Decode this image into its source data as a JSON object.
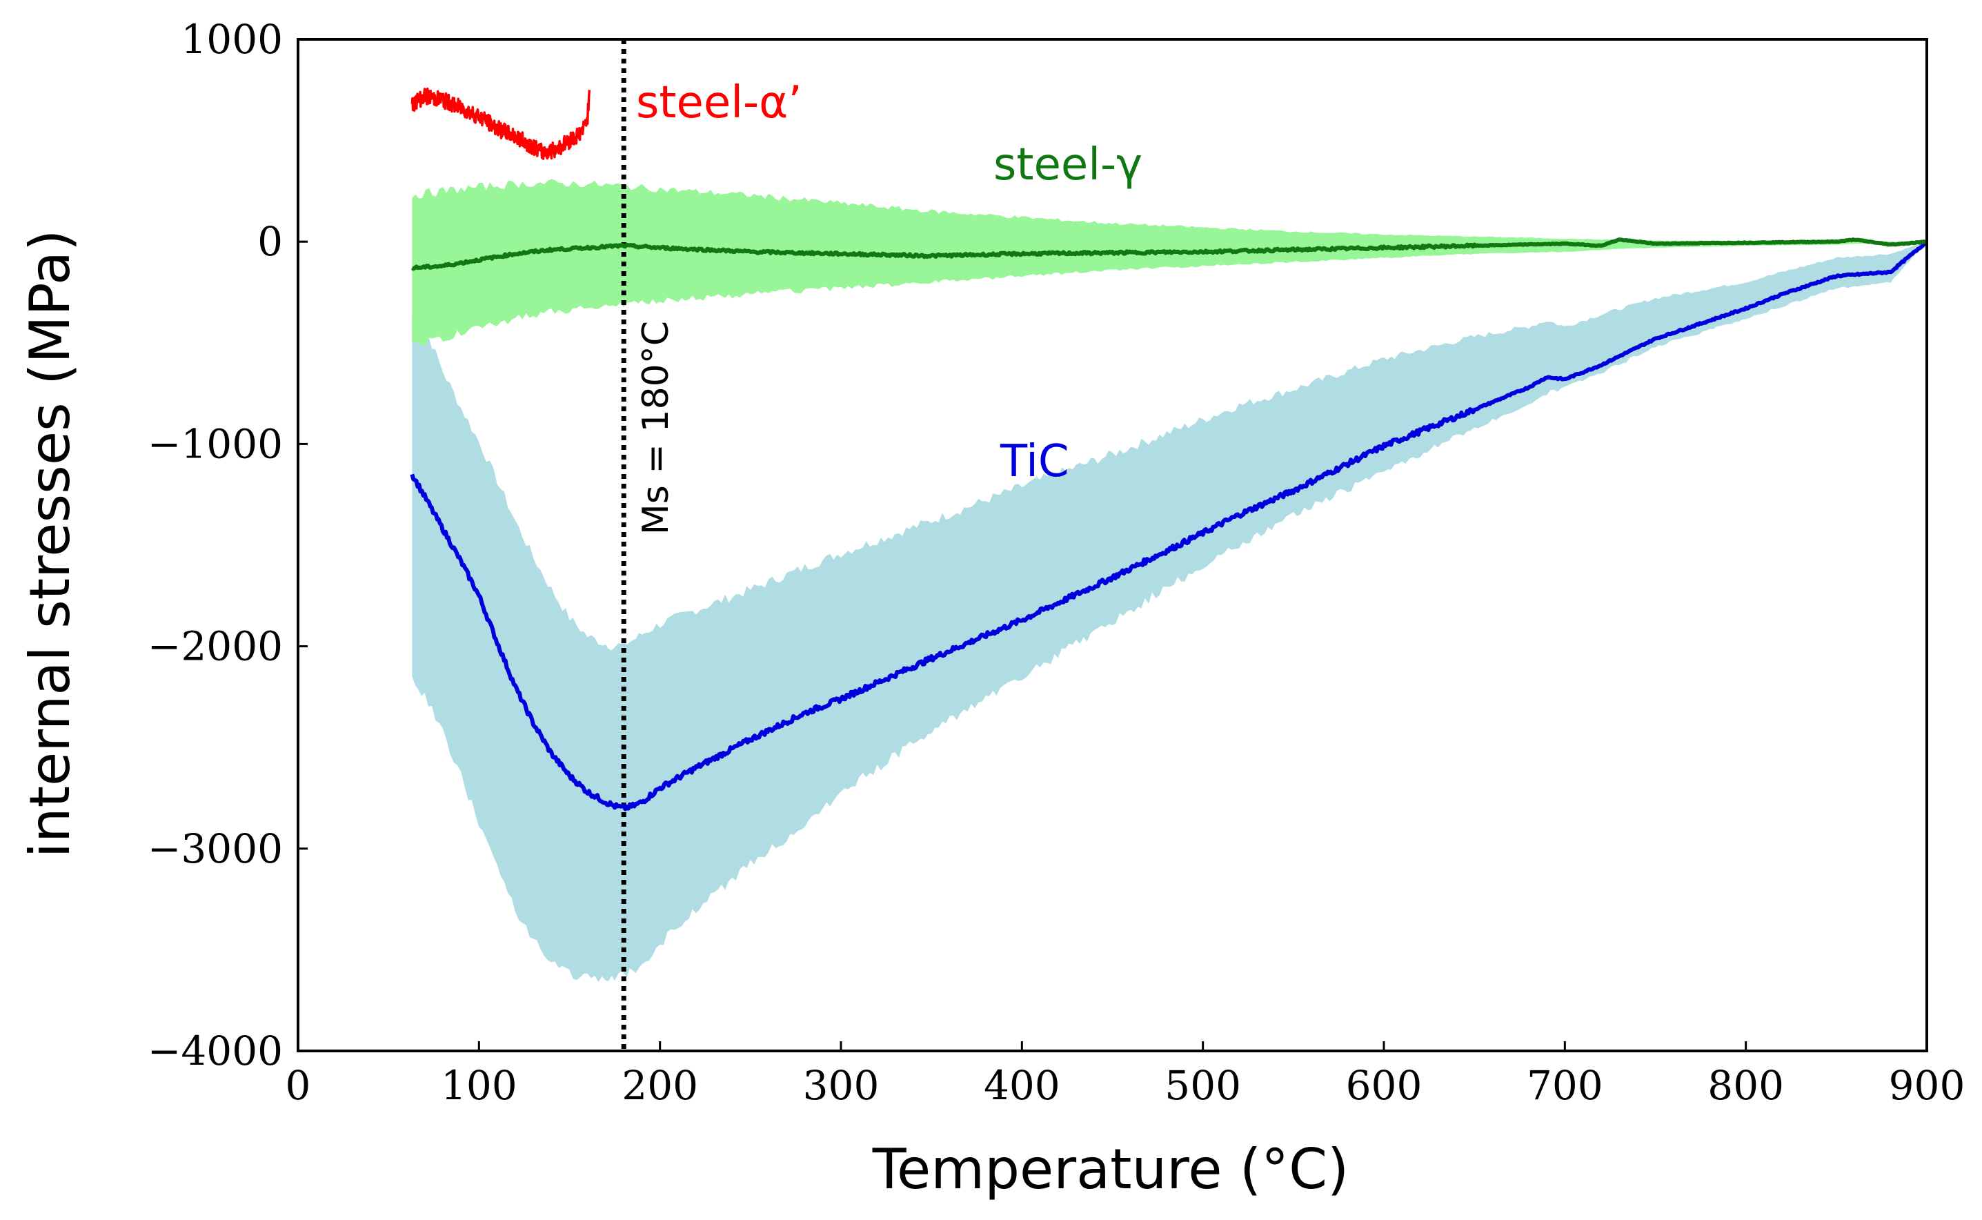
{
  "chart_data": {
    "type": "line",
    "xlabel": "Temperature (°C)",
    "ylabel": "internal stresses (MPa)",
    "xlim": [
      0,
      900
    ],
    "ylim": [
      -4000,
      1000
    ],
    "xticks": [
      0,
      100,
      200,
      300,
      400,
      500,
      600,
      700,
      800,
      900
    ],
    "xtick_labels": [
      "0",
      "100",
      "200",
      "300",
      "400",
      "500",
      "600",
      "700",
      "800",
      "900"
    ],
    "yticks": [
      1000,
      0,
      -1000,
      -2000,
      -3000,
      -4000
    ],
    "ytick_labels": [
      "1000",
      "0",
      "−1000",
      "−2000",
      "−3000",
      "−4000"
    ],
    "vline": {
      "x": 180,
      "label": "Ms = 180°C"
    },
    "series": [
      {
        "name": "TiC",
        "color": "#0000dd",
        "band_color": "#b0dde3",
        "x": [
          63,
          70,
          80,
          90,
          100,
          110,
          120,
          130,
          140,
          150,
          160,
          170,
          175,
          180,
          185,
          190,
          200,
          220,
          250,
          280,
          300,
          350,
          400,
          450,
          500,
          520,
          550,
          600,
          650,
          680,
          690,
          700,
          720,
          750,
          800,
          820,
          850,
          880,
          900
        ],
        "values": [
          -1150,
          -1260,
          -1420,
          -1580,
          -1750,
          -1980,
          -2200,
          -2380,
          -2530,
          -2640,
          -2720,
          -2770,
          -2790,
          -2800,
          -2790,
          -2770,
          -2700,
          -2600,
          -2460,
          -2330,
          -2260,
          -2060,
          -1870,
          -1660,
          -1440,
          -1350,
          -1230,
          -1010,
          -830,
          -720,
          -670,
          -680,
          -610,
          -480,
          -330,
          -260,
          -170,
          -150,
          0
        ],
        "band_upper": [
          -350,
          -420,
          -640,
          -820,
          -990,
          -1180,
          -1380,
          -1560,
          -1720,
          -1860,
          -1950,
          -1990,
          -2000,
          -1990,
          -1970,
          -1940,
          -1890,
          -1820,
          -1720,
          -1610,
          -1540,
          -1380,
          -1210,
          -1050,
          -880,
          -810,
          -730,
          -580,
          -470,
          -420,
          -390,
          -420,
          -360,
          -280,
          -200,
          -150,
          -80,
          -60,
          0
        ],
        "band_lower": [
          -2150,
          -2250,
          -2420,
          -2640,
          -2880,
          -3100,
          -3300,
          -3450,
          -3560,
          -3620,
          -3640,
          -3640,
          -3630,
          -3620,
          -3610,
          -3580,
          -3470,
          -3300,
          -3080,
          -2880,
          -2720,
          -2420,
          -2150,
          -1880,
          -1600,
          -1500,
          -1350,
          -1140,
          -920,
          -800,
          -750,
          -720,
          -650,
          -520,
          -380,
          -320,
          -230,
          -200,
          0
        ]
      },
      {
        "name": "steel-γ",
        "color": "#117711",
        "band_color": "#98f598",
        "x": [
          63,
          80,
          100,
          120,
          140,
          160,
          180,
          200,
          250,
          300,
          350,
          400,
          450,
          500,
          550,
          600,
          650,
          700,
          720,
          730,
          750,
          800,
          850,
          860,
          880,
          900
        ],
        "values": [
          -130,
          -120,
          -90,
          -60,
          -40,
          -30,
          -20,
          -30,
          -50,
          -60,
          -70,
          -60,
          -55,
          -50,
          -40,
          -30,
          -20,
          -10,
          -20,
          10,
          -10,
          -5,
          0,
          10,
          -15,
          0
        ],
        "band_upper": [
          230,
          250,
          270,
          285,
          290,
          285,
          275,
          260,
          230,
          190,
          150,
          120,
          90,
          70,
          50,
          35,
          25,
          15,
          10,
          10,
          5,
          5,
          5,
          5,
          0,
          0
        ],
        "band_lower": [
          -500,
          -480,
          -420,
          -380,
          -350,
          -330,
          -310,
          -290,
          -260,
          -230,
          -200,
          -170,
          -140,
          -120,
          -100,
          -80,
          -60,
          -50,
          -40,
          -35,
          -30,
          -20,
          -15,
          -10,
          -10,
          0
        ]
      },
      {
        "name": "steel-α’",
        "color": "#ff0000",
        "x": [
          63,
          70,
          80,
          90,
          100,
          110,
          120,
          130,
          135,
          140,
          145,
          150,
          155,
          158,
          160,
          161
        ],
        "values": [
          680,
          720,
          700,
          660,
          620,
          560,
          520,
          470,
          440,
          450,
          470,
          500,
          530,
          560,
          620,
          750
        ],
        "noise": 80
      }
    ]
  }
}
